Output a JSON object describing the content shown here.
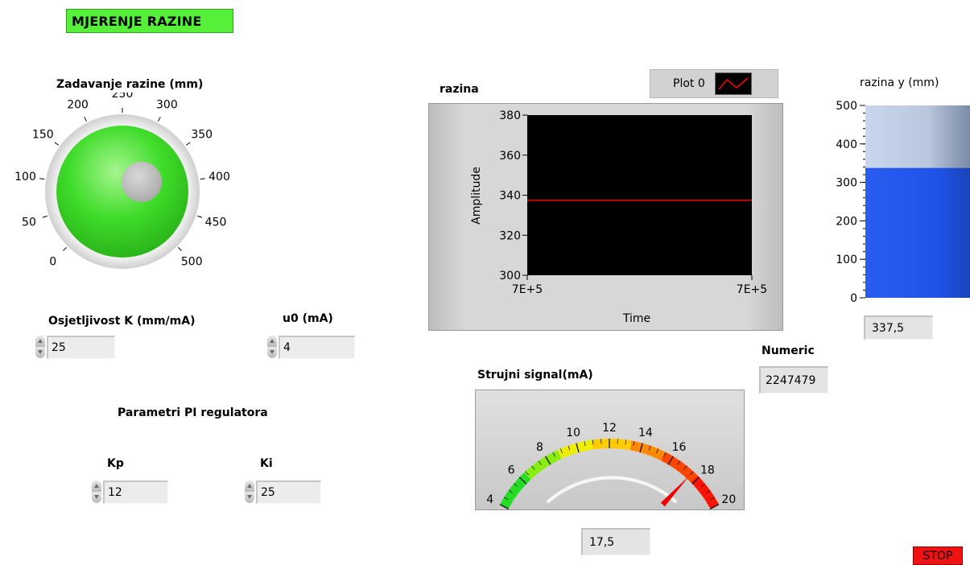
{
  "title": "MJERENJE RAZINE",
  "knob": {
    "label": "Zadavanje razine (mm)",
    "scale": [
      "0",
      "50",
      "100",
      "150",
      "200",
      "250",
      "300",
      "350",
      "400",
      "450",
      "500"
    ],
    "color": "#3fdc2a"
  },
  "controls": {
    "k_label": "Osjetljivost  K (mm/mA)",
    "k_value": "25",
    "u0_label": "u0 (mA)",
    "u0_value": "4",
    "pi_label": "Parametri PI regulatora",
    "kp_label": "Kp",
    "kp_value": "12",
    "ki_label": "Ki",
    "ki_value": "25"
  },
  "graph": {
    "label": "razina",
    "legend": "Plot 0",
    "ylabel": "Amplitude",
    "xlabel": "Time",
    "x_ticks": [
      "7E+5",
      "7E+5"
    ],
    "y_ticks": [
      "300",
      "320",
      "340",
      "360",
      "380"
    ]
  },
  "chart_data": {
    "type": "line",
    "title": "razina",
    "xlabel": "Time",
    "ylabel": "Amplitude",
    "ylim": [
      300,
      380
    ],
    "series": [
      {
        "name": "Plot 0",
        "x": [
          0,
          1
        ],
        "values": [
          337.5,
          337.5
        ]
      }
    ],
    "line_color": "#ff0000",
    "background": "#000000"
  },
  "tank": {
    "label": "razina y (mm)",
    "ticks": [
      "0",
      "100",
      "200",
      "300",
      "400",
      "500"
    ],
    "max": 500,
    "level": 337.5,
    "display_value": "337,5",
    "fill_color": "#1f52e8"
  },
  "numeric": {
    "label": "Numeric",
    "value": "2247479"
  },
  "meter": {
    "label": "Strujni signal(mA)",
    "ticks": [
      "4",
      "6",
      "8",
      "10",
      "12",
      "14",
      "16",
      "18",
      "20"
    ],
    "min": 4,
    "max": 20,
    "value": 17.5,
    "display_value": "17,5"
  },
  "stop": {
    "label": "STOP",
    "color": "#ee1212"
  }
}
